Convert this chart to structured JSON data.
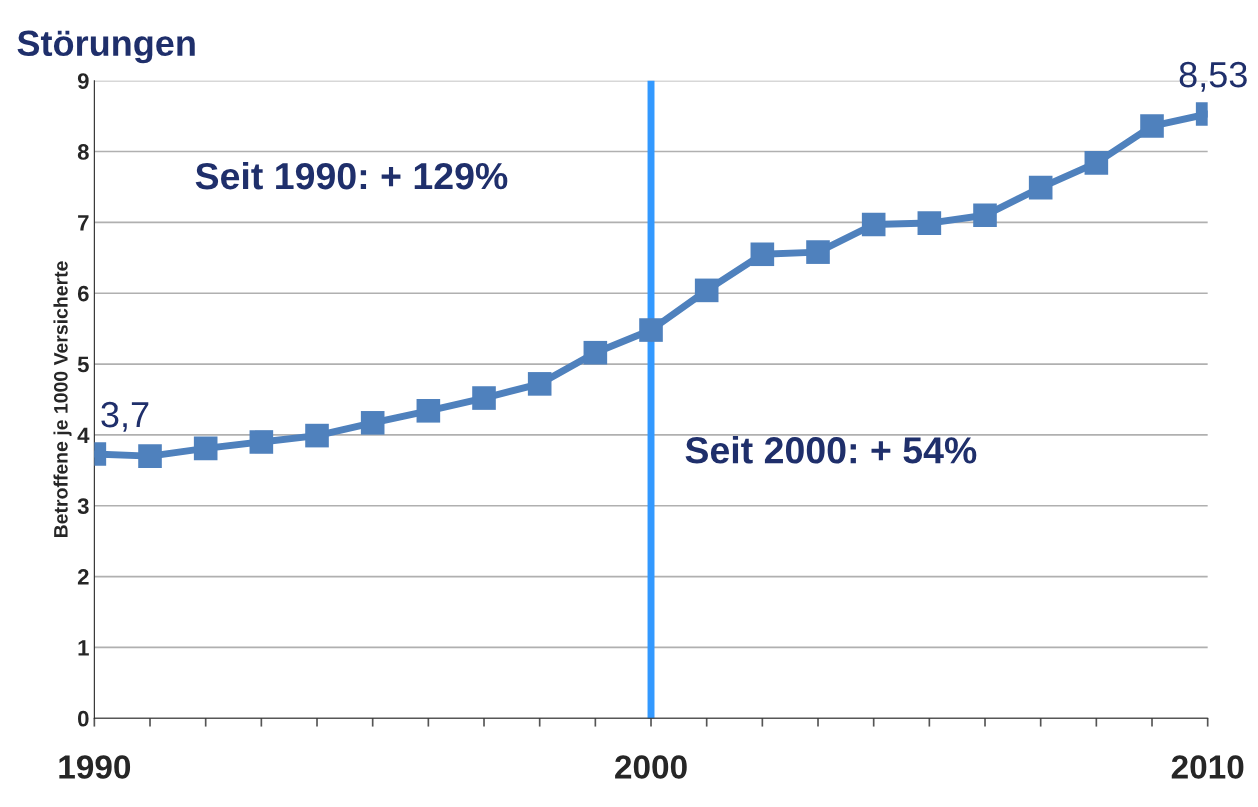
{
  "chart_data": {
    "type": "line",
    "title": "Störungen",
    "ylabel": "Betroffene je 1000 Versicherte",
    "x": [
      1990,
      1991,
      1992,
      1993,
      1994,
      1995,
      1996,
      1997,
      1998,
      1999,
      2000,
      2001,
      2002,
      2003,
      2004,
      2005,
      2006,
      2007,
      2008,
      2009,
      2010
    ],
    "series": [
      {
        "color": "#4f81bd",
        "values": [
          3.73,
          3.7,
          3.81,
          3.9,
          3.99,
          4.17,
          4.34,
          4.52,
          4.72,
          5.16,
          5.48,
          6.04,
          6.55,
          6.58,
          6.97,
          6.99,
          7.1,
          7.49,
          7.84,
          8.36,
          8.53
        ],
        "value_labels": [
          "3,7",
          null,
          null,
          null,
          null,
          null,
          null,
          null,
          null,
          null,
          null,
          null,
          null,
          null,
          null,
          null,
          null,
          null,
          null,
          null,
          "8,53"
        ]
      }
    ],
    "xlim": [
      1990,
      2010
    ],
    "xticks": [
      1990,
      {
        "value": 1991,
        "label": null
      },
      {
        "value": 1992,
        "label": null
      },
      {
        "value": 1993,
        "label": null
      },
      {
        "value": 1994,
        "label": null
      },
      {
        "value": 1995,
        "label": null
      },
      {
        "value": 1996,
        "label": null
      },
      {
        "value": 1997,
        "label": null
      },
      {
        "value": 1998,
        "label": null
      },
      {
        "value": 1999,
        "label": null
      },
      2000,
      {
        "value": 2001,
        "label": null
      },
      {
        "value": 2002,
        "label": null
      },
      {
        "value": 2003,
        "label": null
      },
      {
        "value": 2004,
        "label": null
      },
      {
        "value": 2005,
        "label": null
      },
      {
        "value": 2006,
        "label": null
      },
      {
        "value": 2007,
        "label": null
      },
      {
        "value": 2008,
        "label": null
      },
      {
        "value": 2009,
        "label": null
      },
      2010
    ],
    "ylim": [
      0,
      9
    ],
    "yticks": [
      0,
      1,
      2,
      3,
      4,
      5,
      6,
      7,
      8,
      9
    ],
    "grid": "y",
    "marker": "square",
    "line_style": "solid",
    "ref_lines": [
      {
        "axis": "x",
        "value": 2000,
        "label": null,
        "color": "#3399ff"
      }
    ],
    "annotations": [
      "Seit 1990: + 129%",
      "Seit 2000: + 54%"
    ]
  }
}
